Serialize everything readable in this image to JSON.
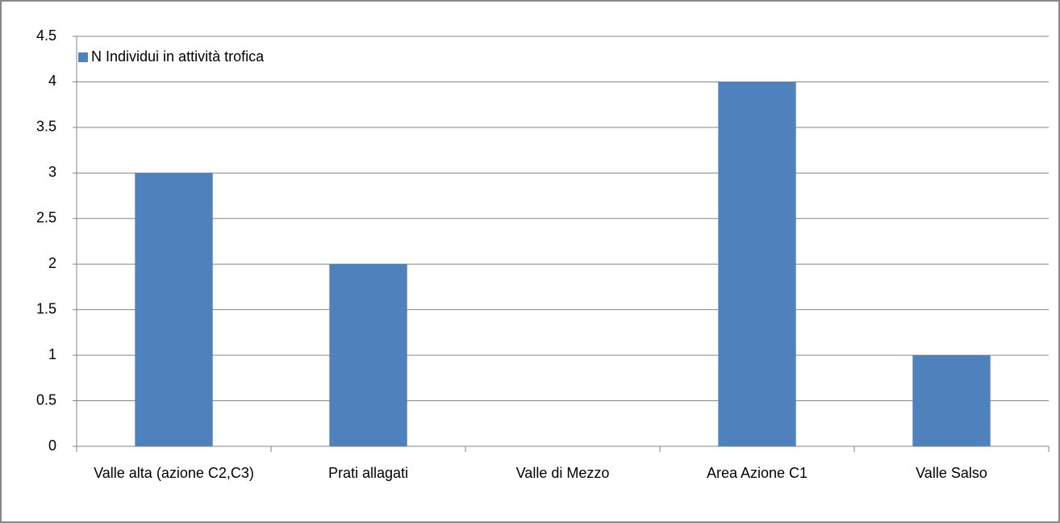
{
  "chart_data": {
    "type": "bar",
    "categories": [
      "Valle alta (azione C2,C3)",
      "Prati allagati",
      "Valle di Mezzo",
      "Area Azione C1",
      "Valle Salso"
    ],
    "series": [
      {
        "name": "N Individui in attività trofica",
        "color": "#4f81bd",
        "values": [
          3,
          2,
          0,
          4,
          1
        ]
      }
    ],
    "ylim": [
      0,
      4.5
    ],
    "yticks": [
      0,
      0.5,
      1,
      1.5,
      2,
      2.5,
      3,
      3.5,
      4,
      4.5
    ],
    "grid": true,
    "legend": "top-left"
  }
}
